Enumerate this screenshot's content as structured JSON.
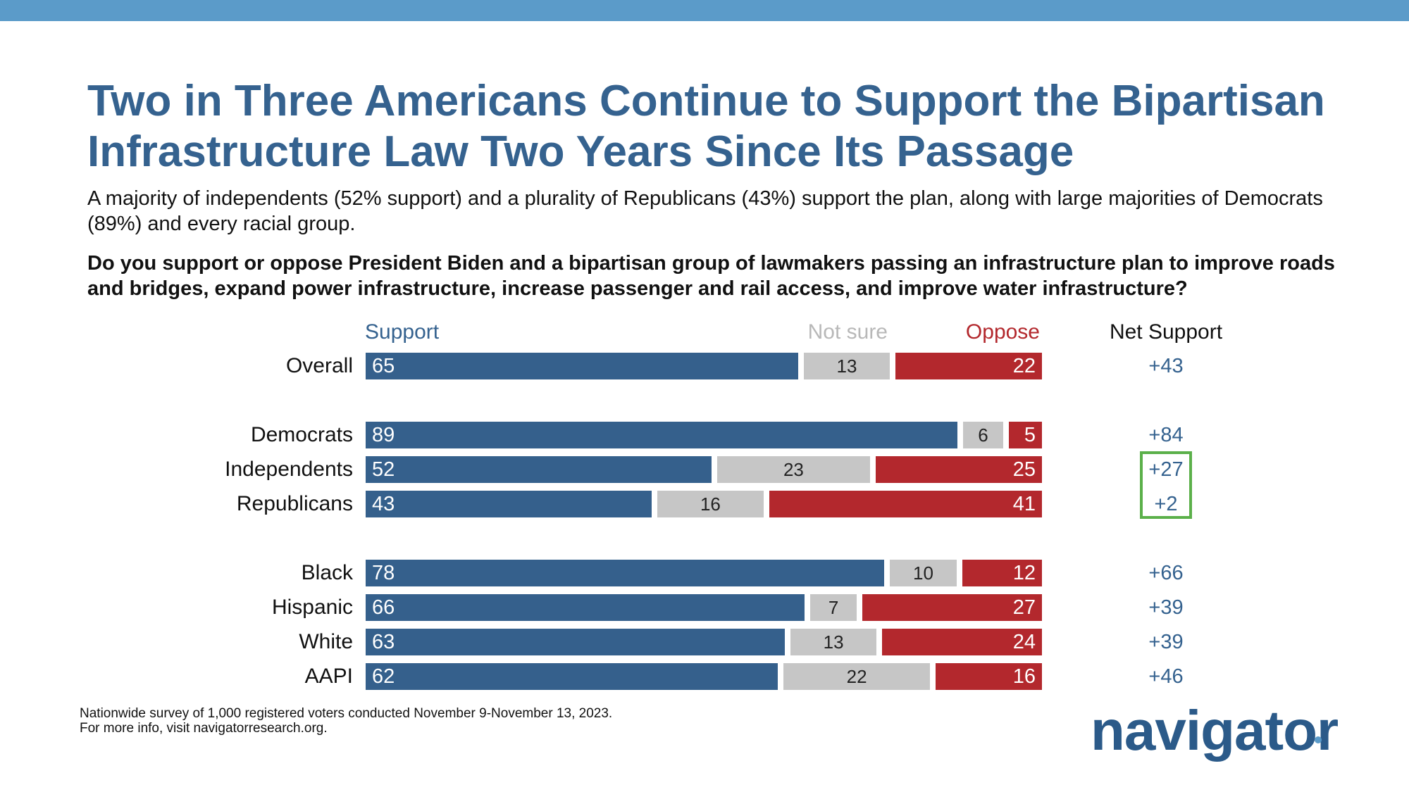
{
  "title_line1": "Two in Three Americans Continue to Support the Bipartisan",
  "title_line2": "Infrastructure Law Two Years Since Its Passage",
  "subtitle": "A majority of independents (52% support) and a plurality of Republicans (43%) support the plan, along with large majorities of Democrats (89%) and every racial group.",
  "question": "Do you support or oppose President Biden and a bipartisan group of lawmakers passing an infrastructure plan to improve roads and bridges, expand power infrastructure, increase passenger and rail access, and improve water infrastructure?",
  "footnote_line1": "Nationwide survey of 1,000 registered voters conducted November 9-November 13, 2023.",
  "footnote_line2": "For more info, visit navigatorresearch.org.",
  "logo_text": "navigator",
  "colors": {
    "support": "#35608c",
    "not_sure": "#c6c6c6",
    "oppose": "#b3282d",
    "highlight": "#5bb04a",
    "accent": "#5b9bc9"
  },
  "chart_data": {
    "type": "bar",
    "orientation": "horizontal-stacked",
    "series_labels": [
      "Support",
      "Not sure",
      "Oppose"
    ],
    "net_label": "Net Support",
    "categories": [
      "Overall",
      "Democrats",
      "Independents",
      "Republicans",
      "Black",
      "Hispanic",
      "White",
      "AAPI"
    ],
    "groups": [
      [
        "Overall"
      ],
      [
        "Democrats",
        "Independents",
        "Republicans"
      ],
      [
        "Black",
        "Hispanic",
        "White",
        "AAPI"
      ]
    ],
    "series": [
      {
        "name": "Support",
        "values": [
          65,
          89,
          52,
          43,
          78,
          66,
          63,
          62
        ]
      },
      {
        "name": "Not sure",
        "values": [
          13,
          6,
          23,
          16,
          10,
          7,
          13,
          22
        ]
      },
      {
        "name": "Oppose",
        "values": [
          22,
          5,
          25,
          41,
          12,
          27,
          24,
          16
        ]
      }
    ],
    "net": [
      "+43",
      "+84",
      "+27",
      "+2",
      "+66",
      "+39",
      "+39",
      "+46"
    ],
    "highlighted_net": [
      "Independents",
      "Republicans"
    ],
    "xlim": [
      0,
      100
    ]
  }
}
